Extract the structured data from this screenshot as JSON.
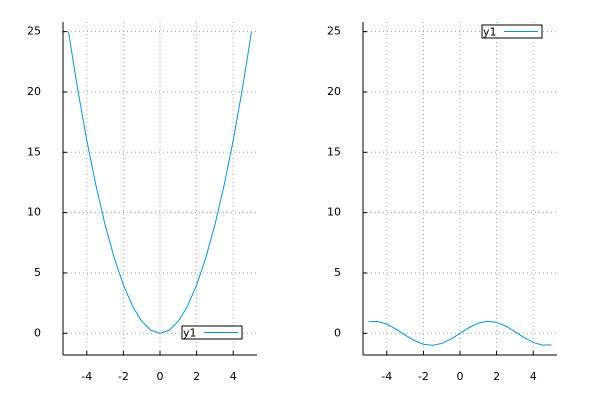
{
  "chart_data": [
    {
      "type": "line",
      "x": [
        -5,
        -4.5,
        -4,
        -3.5,
        -3,
        -2.5,
        -2,
        -1.5,
        -1,
        -0.5,
        0,
        0.5,
        1,
        1.5,
        2,
        2.5,
        3,
        3.5,
        4,
        4.5,
        5
      ],
      "series": [
        {
          "name": "y1",
          "color": "#0b93d1",
          "values": [
            25,
            20.25,
            16,
            12.25,
            9,
            6.25,
            4,
            2.25,
            1,
            0.25,
            0,
            0.25,
            1,
            2.25,
            4,
            6.25,
            9,
            12.25,
            16,
            20.25,
            25
          ]
        }
      ],
      "xlim": [
        -5.3,
        5.3
      ],
      "ylim": [
        -1.8,
        25.8
      ],
      "xticks": [
        -4,
        -2,
        0,
        2,
        4
      ],
      "yticks": [
        0,
        5,
        10,
        15,
        20,
        25
      ],
      "grid": true,
      "legend": "lower right"
    },
    {
      "type": "line",
      "x": [
        -5,
        -4.5,
        -4,
        -3.5,
        -3,
        -2.5,
        -2,
        -1.5,
        -1,
        -0.5,
        0,
        0.5,
        1,
        1.5,
        2,
        2.5,
        3,
        3.5,
        4,
        4.5,
        5
      ],
      "series": [
        {
          "name": "y1",
          "color": "#0b93d1",
          "values": [
            0.959,
            0.978,
            0.757,
            0.351,
            -0.141,
            -0.598,
            -0.909,
            -0.997,
            -0.841,
            -0.479,
            0,
            0.479,
            0.841,
            0.997,
            0.909,
            0.598,
            0.141,
            -0.351,
            -0.757,
            -0.978,
            -0.959
          ]
        }
      ],
      "xlim": [
        -5.3,
        5.3
      ],
      "ylim": [
        -1.8,
        25.8
      ],
      "xticks": [
        -4,
        -2,
        0,
        2,
        4
      ],
      "yticks": [
        0,
        5,
        10,
        15,
        20,
        25
      ],
      "grid": true,
      "legend": "upper right"
    }
  ]
}
